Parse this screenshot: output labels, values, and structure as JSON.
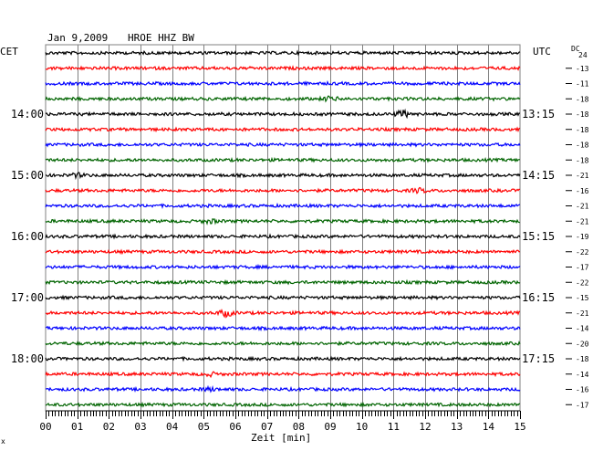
{
  "header": {
    "date": "Jan 9,2009",
    "station": "HROE HHZ BW",
    "left_timezone": "CET",
    "right_timezone": "UTC",
    "dc_label": "DC",
    "dc_first": "24"
  },
  "footer": {
    "xlabel": "Zeit [min]",
    "corner_mark": "x"
  },
  "colors": {
    "black": "#000000",
    "red": "#ff0000",
    "blue": "#0000ff",
    "green": "#006400",
    "grid": "#808080",
    "axis": "#000000"
  },
  "chart_data": {
    "type": "line",
    "title": "Jan 9,2009  HROE HHZ BW",
    "xlabel": "Zeit [min]",
    "xlim": [
      0,
      15
    ],
    "x_ticks": [
      "00",
      "01",
      "02",
      "03",
      "04",
      "05",
      "06",
      "07",
      "08",
      "09",
      "10",
      "11",
      "12",
      "13",
      "14",
      "15"
    ],
    "trace_color_cycle": [
      "black",
      "red",
      "blue",
      "green"
    ],
    "left_time_labels": [
      {
        "row": 4,
        "label": "14:00"
      },
      {
        "row": 8,
        "label": "15:00"
      },
      {
        "row": 12,
        "label": "16:00"
      },
      {
        "row": 16,
        "label": "17:00"
      },
      {
        "row": 20,
        "label": "18:00"
      }
    ],
    "right_time_labels": [
      {
        "row": 4,
        "label": "13:15"
      },
      {
        "row": 8,
        "label": "14:15"
      },
      {
        "row": 12,
        "label": "15:15"
      },
      {
        "row": 16,
        "label": "16:15"
      },
      {
        "row": 20,
        "label": "17:15"
      }
    ],
    "dc_offsets": [
      null,
      "-13",
      "-11",
      "-18",
      "-18",
      "-18",
      "-18",
      "-18",
      "-21",
      "-16",
      "-21",
      "-21",
      "-19",
      "-22",
      "-17",
      "-22",
      "-15",
      "-21",
      "-14",
      "-20",
      "-18",
      "-14",
      "-16",
      "-17"
    ],
    "events": [
      {
        "row": 3,
        "minute": 9.0,
        "strength": 2.0
      },
      {
        "row": 4,
        "minute": 11.3,
        "strength": 3.0
      },
      {
        "row": 8,
        "minute": 1.0,
        "strength": 1.6
      },
      {
        "row": 9,
        "minute": 11.8,
        "strength": 1.8
      },
      {
        "row": 11,
        "minute": 5.2,
        "strength": 1.6
      },
      {
        "row": 17,
        "minute": 5.7,
        "strength": 3.0
      },
      {
        "row": 21,
        "minute": 5.2,
        "strength": 1.4
      },
      {
        "row": 22,
        "minute": 5.2,
        "strength": 1.4
      }
    ]
  }
}
